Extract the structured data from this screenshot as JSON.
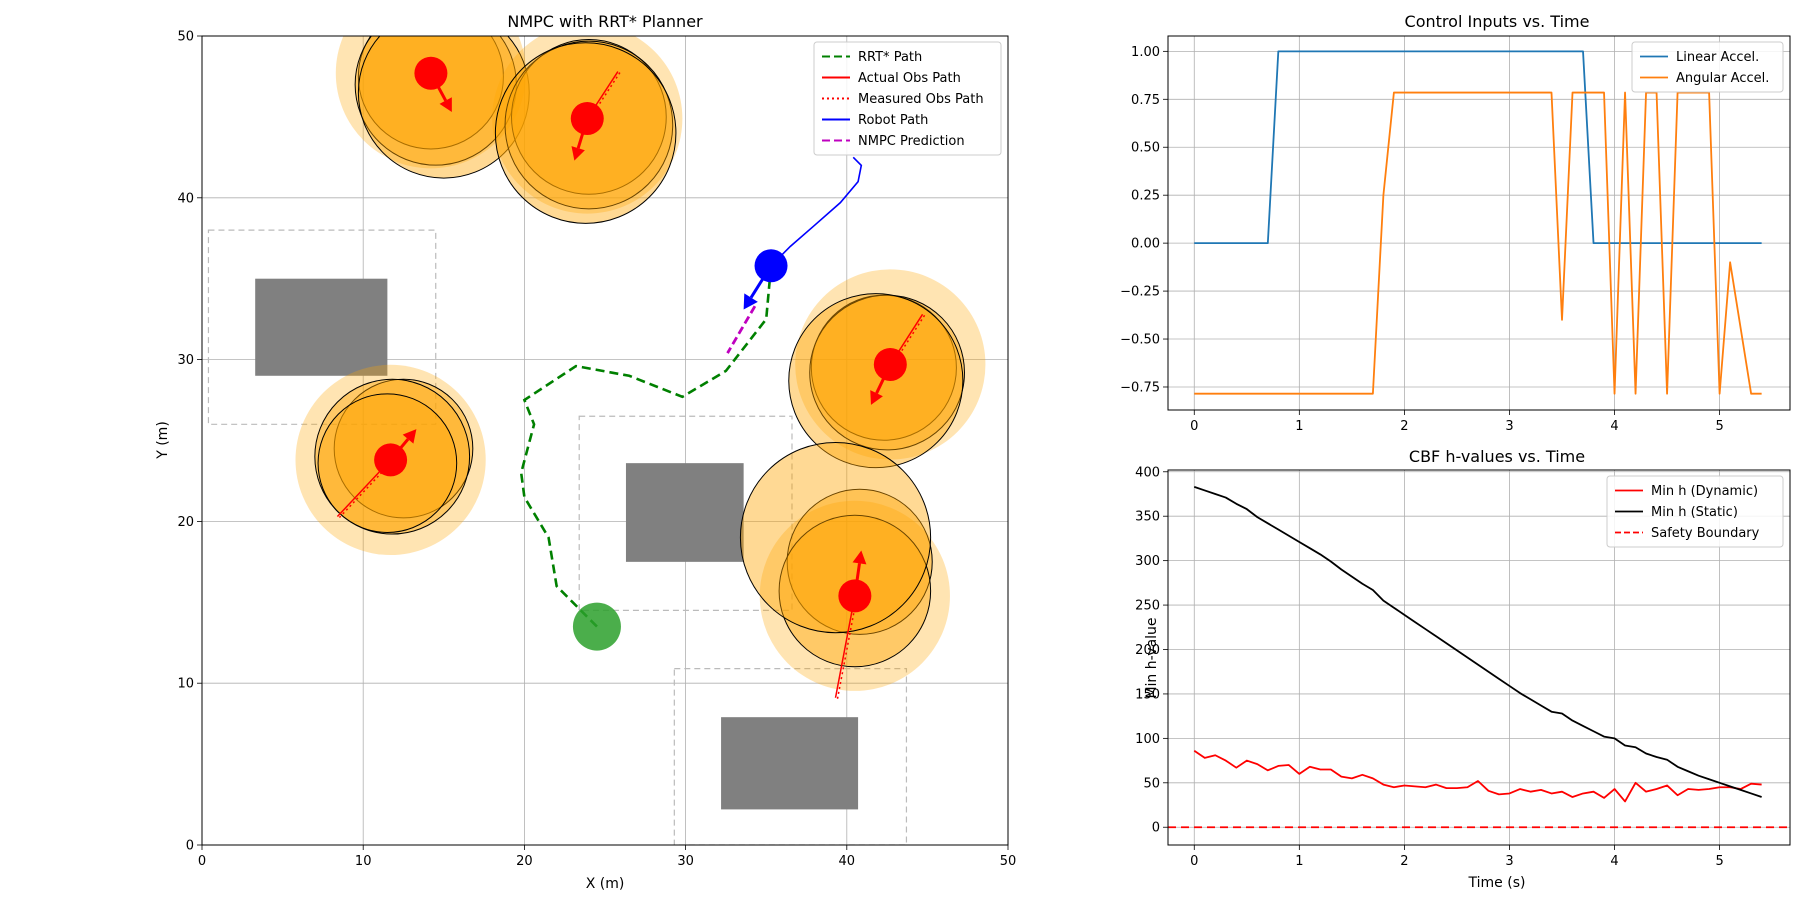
{
  "chart_data": [
    {
      "type": "scatter",
      "title": "NMPC with RRT* Planner",
      "xlabel": "X (m)",
      "ylabel": "Y (m)",
      "xlim": [
        0,
        50
      ],
      "ylim": [
        0,
        50
      ],
      "xticks": [
        0,
        10,
        20,
        30,
        40,
        50
      ],
      "yticks": [
        0,
        10,
        20,
        30,
        40,
        50
      ],
      "grid": true,
      "legend_position": "top-right",
      "legend": [
        {
          "label": "RRT* Path",
          "color": "#008000",
          "style": "dashed"
        },
        {
          "label": "Actual Obs Path",
          "color": "#ff0000",
          "style": "solid"
        },
        {
          "label": "Measured Obs Path",
          "color": "#ff0000",
          "style": "dotted"
        },
        {
          "label": "Robot Path",
          "color": "#0000ff",
          "style": "solid"
        },
        {
          "label": "NMPC Prediction",
          "color": "#bf00bf",
          "style": "dashed"
        }
      ],
      "rrt_path": [
        [
          24.5,
          13.5
        ],
        [
          23,
          15
        ],
        [
          22,
          16
        ],
        [
          21.5,
          19
        ],
        [
          20,
          21.5
        ],
        [
          19.8,
          23
        ],
        [
          20.6,
          26
        ],
        [
          20,
          27.5
        ],
        [
          23.2,
          29.6
        ],
        [
          26.5,
          29
        ],
        [
          29.8,
          27.7
        ],
        [
          32.5,
          29.3
        ],
        [
          35,
          32.5
        ],
        [
          35.3,
          35.8
        ]
      ],
      "robot_path": [
        [
          35.3,
          35.8
        ],
        [
          36.5,
          37
        ],
        [
          38,
          38.3
        ],
        [
          39.6,
          39.7
        ],
        [
          40.7,
          41
        ],
        [
          40.9,
          42
        ],
        [
          40.4,
          42.5
        ]
      ],
      "robot": {
        "x": 35.3,
        "y": 35.8,
        "heading_to": [
          33.6,
          33.1
        ],
        "color": "#0000ff"
      },
      "nmpc_prediction": [
        [
          34.3,
          33.3
        ],
        [
          32.6,
          30.4
        ]
      ],
      "goal": {
        "x": 24.5,
        "y": 13.5,
        "color": "#2ca02c"
      },
      "static_obstacles": [
        {
          "x0": 3.3,
          "y0": 29,
          "x1": 11.5,
          "y1": 35,
          "zone": [
            0.4,
            26,
            14.5,
            38
          ]
        },
        {
          "x0": 26.3,
          "y0": 17.5,
          "x1": 33.6,
          "y1": 23.6,
          "zone": [
            23.4,
            14.5,
            36.6,
            26.5
          ]
        },
        {
          "x0": 32.2,
          "y0": 2.2,
          "x1": 40.7,
          "y1": 7.9,
          "zone": [
            29.3,
            0,
            43.7,
            10.9
          ]
        }
      ],
      "dynamic_obstacles": [
        {
          "x": 14.2,
          "y": 47.7,
          "arrow_to": [
            15.5,
            45.3
          ],
          "safe_r": 5.9,
          "rings": [
            [
              14.2,
              47.5,
              4.5
            ],
            [
              14.5,
              47,
              5
            ],
            [
              15,
              46.5,
              5.3
            ]
          ],
          "path": [
            [
              14,
              48.5
            ],
            [
              14.2,
              47.7
            ]
          ]
        },
        {
          "x": 23.9,
          "y": 44.9,
          "arrow_to": [
            23.1,
            42.3
          ],
          "safe_r": 5.9,
          "rings": [
            [
              24,
              45,
              4.8
            ],
            [
              24,
              44.5,
              5.2
            ],
            [
              23.8,
              44,
              5.6
            ]
          ],
          "path": [
            [
              25.8,
              47.8
            ],
            [
              23.9,
              44.9
            ]
          ]
        },
        {
          "x": 42.7,
          "y": 29.7,
          "arrow_to": [
            41.5,
            27.2
          ],
          "safe_r": 5.9,
          "rings": [
            [
              42.3,
              29.5,
              4.5
            ],
            [
              42.5,
              29.2,
              4.8
            ],
            [
              41.8,
              28.7,
              5.4
            ]
          ],
          "path": [
            [
              44.7,
              32.8
            ],
            [
              42.7,
              29.7
            ]
          ]
        },
        {
          "x": 11.7,
          "y": 23.8,
          "arrow_to": [
            13.3,
            25.7
          ],
          "safe_r": 5.9,
          "rings": [
            [
              12.5,
              24.5,
              4.3
            ],
            [
              11.8,
              24,
              4.8
            ],
            [
              11.5,
              23.6,
              4.3
            ]
          ],
          "path": [
            [
              8.4,
              20.3
            ],
            [
              11.7,
              23.8
            ]
          ]
        },
        {
          "x": 40.5,
          "y": 15.4,
          "arrow_to": [
            40.9,
            18.2
          ],
          "safe_r": 5.9,
          "rings": [
            [
              40.8,
              17.5,
              4.5
            ],
            [
              40.5,
              15.7,
              4.7
            ],
            [
              39.3,
              19,
              5.9
            ]
          ],
          "path": [
            [
              39.3,
              9.1
            ],
            [
              40.5,
              15.4
            ]
          ]
        }
      ]
    },
    {
      "type": "line",
      "title": "Control Inputs vs. Time",
      "xlim": [
        -0.25,
        5.67
      ],
      "ylim": [
        -0.87,
        1.08
      ],
      "xticks": [
        0,
        1,
        2,
        3,
        4,
        5
      ],
      "yticks": [
        -0.75,
        -0.5,
        -0.25,
        0.0,
        0.25,
        0.5,
        0.75,
        1.0
      ],
      "ytick_labels": [
        "−0.75",
        "−0.50",
        "−0.25",
        "0.00",
        "0.25",
        "0.50",
        "0.75",
        "1.00"
      ],
      "grid": true,
      "legend_position": "top-right",
      "series": [
        {
          "name": "Linear Accel.",
          "color": "#1f77b4",
          "points": [
            [
              0,
              0
            ],
            [
              0.7,
              0
            ],
            [
              0.8,
              1
            ],
            [
              3.7,
              1
            ],
            [
              3.8,
              0
            ],
            [
              5.4,
              0
            ]
          ]
        },
        {
          "name": "Angular Accel.",
          "color": "#ff7f0e",
          "points": [
            [
              0,
              -0.785
            ],
            [
              1.7,
              -0.785
            ],
            [
              1.8,
              0.25
            ],
            [
              1.9,
              0.785
            ],
            [
              3.4,
              0.785
            ],
            [
              3.5,
              -0.4
            ],
            [
              3.6,
              0.785
            ],
            [
              3.7,
              0.785
            ],
            [
              3.8,
              0.785
            ],
            [
              3.9,
              0.785
            ],
            [
              4.0,
              -0.785
            ],
            [
              4.1,
              0.785
            ],
            [
              4.2,
              -0.785
            ],
            [
              4.3,
              0.785
            ],
            [
              4.4,
              0.785
            ],
            [
              4.5,
              -0.785
            ],
            [
              4.6,
              0.785
            ],
            [
              4.9,
              0.785
            ],
            [
              5.0,
              -0.785
            ],
            [
              5.1,
              -0.1
            ],
            [
              5.3,
              -0.785
            ],
            [
              5.4,
              -0.785
            ]
          ]
        }
      ]
    },
    {
      "type": "line",
      "title": "CBF h-values vs. Time",
      "xlabel": "Time (s)",
      "ylabel": "Min h-value",
      "xlim": [
        -0.25,
        5.67
      ],
      "ylim": [
        -20,
        402
      ],
      "xticks": [
        0,
        1,
        2,
        3,
        4,
        5
      ],
      "yticks": [
        0,
        50,
        100,
        150,
        200,
        250,
        300,
        350,
        400
      ],
      "grid": true,
      "legend_position": "top-right",
      "series": [
        {
          "name": "Min h (Dynamic)",
          "color": "#ff0000",
          "dash": "",
          "points": [
            [
              0,
              86
            ],
            [
              0.1,
              78
            ],
            [
              0.2,
              81
            ],
            [
              0.3,
              75
            ],
            [
              0.4,
              67
            ],
            [
              0.5,
              75
            ],
            [
              0.6,
              71
            ],
            [
              0.7,
              64
            ],
            [
              0.8,
              69
            ],
            [
              0.9,
              70
            ],
            [
              1.0,
              60
            ],
            [
              1.1,
              68
            ],
            [
              1.2,
              65
            ],
            [
              1.3,
              65
            ],
            [
              1.4,
              57
            ],
            [
              1.5,
              55
            ],
            [
              1.6,
              59
            ],
            [
              1.7,
              55
            ],
            [
              1.8,
              48
            ],
            [
              1.9,
              45
            ],
            [
              2.0,
              47
            ],
            [
              2.1,
              46
            ],
            [
              2.2,
              45
            ],
            [
              2.3,
              48
            ],
            [
              2.4,
              44
            ],
            [
              2.5,
              44
            ],
            [
              2.6,
              45
            ],
            [
              2.7,
              52
            ],
            [
              2.8,
              41
            ],
            [
              2.9,
              37
            ],
            [
              3.0,
              38
            ],
            [
              3.1,
              43
            ],
            [
              3.2,
              40
            ],
            [
              3.3,
              42
            ],
            [
              3.4,
              38
            ],
            [
              3.5,
              40
            ],
            [
              3.6,
              34
            ],
            [
              3.7,
              38
            ],
            [
              3.8,
              40
            ],
            [
              3.9,
              33
            ],
            [
              4.0,
              43
            ],
            [
              4.1,
              29
            ],
            [
              4.2,
              50
            ],
            [
              4.3,
              40
            ],
            [
              4.4,
              43
            ],
            [
              4.5,
              47
            ],
            [
              4.6,
              36
            ],
            [
              4.7,
              43
            ],
            [
              4.8,
              42
            ],
            [
              4.9,
              43
            ],
            [
              5.0,
              45
            ],
            [
              5.1,
              45
            ],
            [
              5.2,
              43
            ],
            [
              5.3,
              49
            ],
            [
              5.4,
              48
            ]
          ]
        },
        {
          "name": "Min h (Static)",
          "color": "#000000",
          "dash": "",
          "points": [
            [
              0,
              383
            ],
            [
              0.1,
              379
            ],
            [
              0.2,
              375
            ],
            [
              0.3,
              371
            ],
            [
              0.4,
              364
            ],
            [
              0.5,
              358
            ],
            [
              0.6,
              349
            ],
            [
              0.7,
              342
            ],
            [
              0.8,
              335
            ],
            [
              0.9,
              328
            ],
            [
              1.0,
              321
            ],
            [
              1.1,
              314
            ],
            [
              1.2,
              307
            ],
            [
              1.3,
              299
            ],
            [
              1.4,
              290
            ],
            [
              1.5,
              282
            ],
            [
              1.6,
              274
            ],
            [
              1.7,
              267
            ],
            [
              1.8,
              255
            ],
            [
              1.9,
              247
            ],
            [
              2.0,
              239
            ],
            [
              2.1,
              231
            ],
            [
              2.2,
              223
            ],
            [
              2.3,
              215
            ],
            [
              2.4,
              207
            ],
            [
              2.5,
              199
            ],
            [
              2.6,
              191
            ],
            [
              2.7,
              183
            ],
            [
              2.8,
              175
            ],
            [
              2.9,
              167
            ],
            [
              3.0,
              159
            ],
            [
              3.1,
              151
            ],
            [
              3.2,
              144
            ],
            [
              3.3,
              137
            ],
            [
              3.4,
              130
            ],
            [
              3.5,
              128
            ],
            [
              3.6,
              120
            ],
            [
              3.7,
              114
            ],
            [
              3.8,
              108
            ],
            [
              3.9,
              102
            ],
            [
              4.0,
              100
            ],
            [
              4.1,
              92
            ],
            [
              4.2,
              90
            ],
            [
              4.3,
              83
            ],
            [
              4.4,
              79
            ],
            [
              4.5,
              76
            ],
            [
              4.6,
              68
            ],
            [
              4.7,
              63
            ],
            [
              4.8,
              58
            ],
            [
              4.9,
              54
            ],
            [
              5.0,
              50
            ],
            [
              5.1,
              46
            ],
            [
              5.2,
              42
            ],
            [
              5.3,
              38
            ],
            [
              5.4,
              34
            ]
          ]
        }
      ],
      "hlines": [
        {
          "name": "Safety Boundary",
          "y": 0,
          "color": "#ff0000",
          "dash": "8,5"
        }
      ]
    }
  ]
}
